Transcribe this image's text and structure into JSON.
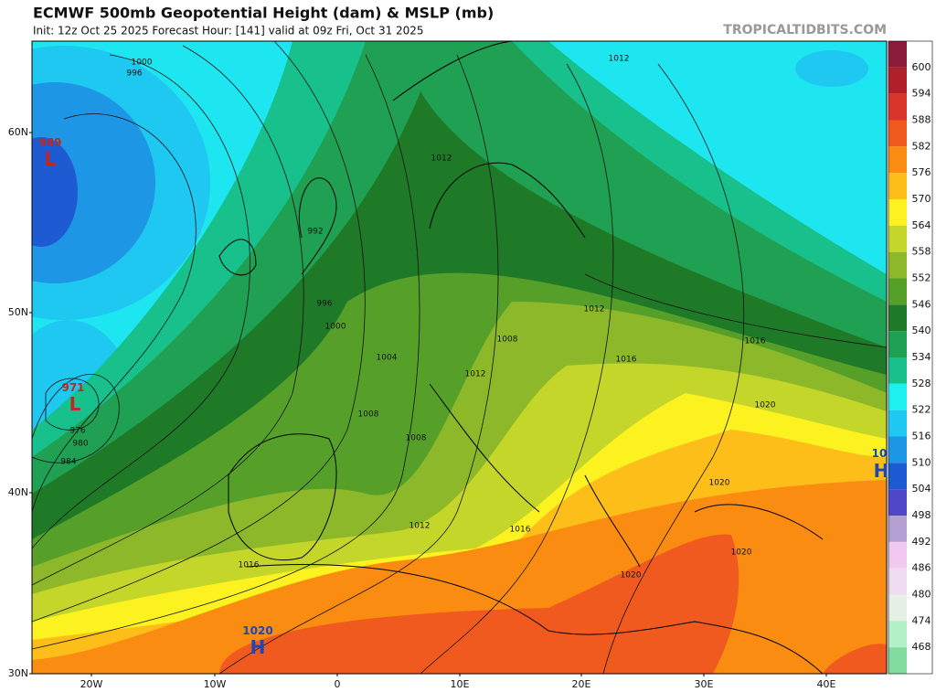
{
  "header": {
    "title": "ECMWF 500mb Geopotential Height (dam) & MSLP (mb)",
    "subtitle": "Init: 12z Oct 25 2025   Forecast Hour: [141]   valid at 09z Fri, Oct 31 2025",
    "credit": "TROPICALTIDBITS.COM"
  },
  "axes": {
    "lat": [
      "60N",
      "50N",
      "40N",
      "30N"
    ],
    "lon": [
      "20W",
      "10W",
      "0",
      "10E",
      "20E",
      "30E",
      "40E"
    ]
  },
  "colorbar": {
    "top_color": "#8c1c3c",
    "levels": [
      {
        "label": "600",
        "color": "#b01f2a"
      },
      {
        "label": "594",
        "color": "#d8342a"
      },
      {
        "label": "588",
        "color": "#f05a1e"
      },
      {
        "label": "582",
        "color": "#fb8c12"
      },
      {
        "label": "576",
        "color": "#fdbe1a"
      },
      {
        "label": "570",
        "color": "#fcf21f"
      },
      {
        "label": "564",
        "color": "#c5d62a"
      },
      {
        "label": "558",
        "color": "#8cb82a"
      },
      {
        "label": "552",
        "color": "#56a02a"
      },
      {
        "label": "546",
        "color": "#1f7a28"
      },
      {
        "label": "540",
        "color": "#1fa053"
      },
      {
        "label": "534",
        "color": "#18c08c"
      },
      {
        "label": "528",
        "color": "#1ef0f0"
      },
      {
        "label": "522",
        "color": "#1ec8f0"
      },
      {
        "label": "516",
        "color": "#1e96e6"
      },
      {
        "label": "510",
        "color": "#1e5ad2"
      },
      {
        "label": "504",
        "color": "#5046c8"
      },
      {
        "label": "498",
        "color": "#b4a0d2"
      },
      {
        "label": "492",
        "color": "#f0c8f0"
      },
      {
        "label": "486",
        "color": "#f0dcf0"
      },
      {
        "label": "480",
        "color": "#e6f0e6"
      },
      {
        "label": "474",
        "color": "#b4f0c8"
      },
      {
        "label": "468",
        "color": "#82dca0"
      }
    ]
  },
  "centers": [
    {
      "value": "969",
      "symbol": "L"
    },
    {
      "value": "971",
      "symbol": "L"
    },
    {
      "value": "1020",
      "symbol": "H"
    },
    {
      "value": "10",
      "symbol": "H"
    }
  ],
  "isobar_labels": [
    "1000",
    "996",
    "992",
    "996",
    "1000",
    "1004",
    "1008",
    "1008",
    "1012",
    "1012",
    "1012",
    "1016",
    "1020",
    "1016",
    "1016",
    "1012",
    "1008",
    "976",
    "980",
    "984",
    "1020",
    "1020",
    "1020",
    "1016",
    "1012"
  ]
}
